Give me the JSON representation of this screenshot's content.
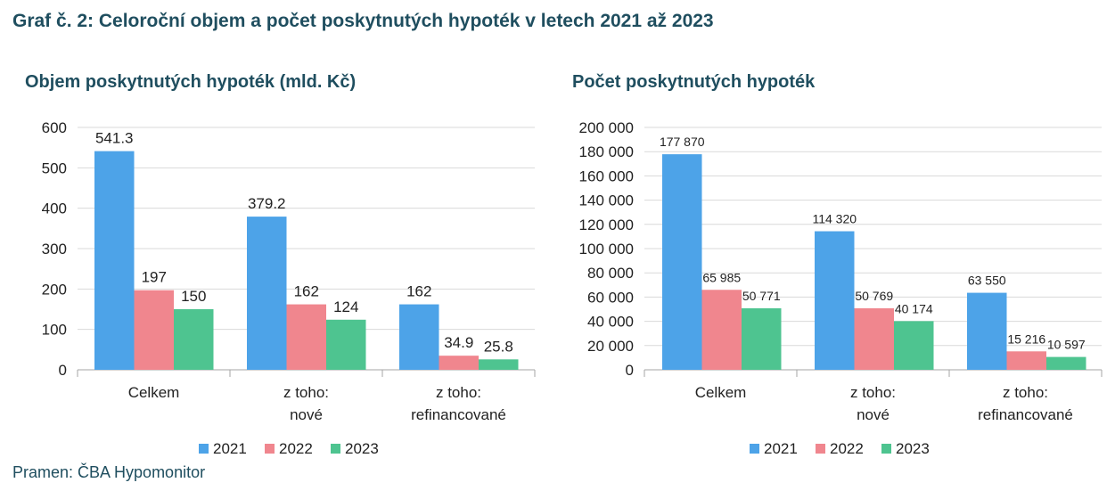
{
  "page": {
    "title": "Graf č. 2: Celoroční objem a počet poskytnutých hypoték v letech 2021 až 2023",
    "source": "Pramen: ČBA Hypomonitor"
  },
  "colors": {
    "2021": "#4da3e8",
    "2022": "#f0868e",
    "2023": "#4ec490"
  },
  "chart_data": [
    {
      "type": "bar",
      "title": "Objem poskytnutých hypoték (mld. Kč)",
      "categories": [
        [
          "Celkem"
        ],
        [
          "z toho:",
          "nové"
        ],
        [
          "z toho:",
          "refinancované"
        ]
      ],
      "series": [
        {
          "name": "2021",
          "values": [
            541.3,
            379.2,
            162
          ],
          "labels": [
            "541.3",
            "379.2",
            "162"
          ]
        },
        {
          "name": "2022",
          "values": [
            197,
            162,
            34.9
          ],
          "labels": [
            "197",
            "162",
            "34.9"
          ]
        },
        {
          "name": "2023",
          "values": [
            150,
            124,
            25.8
          ],
          "labels": [
            "150",
            "124",
            "25.8"
          ]
        }
      ],
      "ylim": [
        0,
        600
      ],
      "yticks": [
        0,
        100,
        200,
        300,
        400,
        500,
        600
      ],
      "ytick_labels": [
        "0",
        "100",
        "200",
        "300",
        "400",
        "500",
        "600"
      ],
      "grid": true,
      "legend": "bottom"
    },
    {
      "type": "bar",
      "title": "Počet poskytnutých hypoték",
      "categories": [
        [
          "Celkem"
        ],
        [
          "z toho:",
          "nové"
        ],
        [
          "z toho:",
          "refinancované"
        ]
      ],
      "series": [
        {
          "name": "2021",
          "values": [
            177870,
            114320,
            63550
          ],
          "labels": [
            "177 870",
            "114 320",
            "63 550"
          ]
        },
        {
          "name": "2022",
          "values": [
            65985,
            50769,
            15216
          ],
          "labels": [
            "65 985",
            "50 769",
            "15 216"
          ]
        },
        {
          "name": "2023",
          "values": [
            50771,
            40174,
            10597
          ],
          "labels": [
            "50 771",
            "40 174",
            "10 597"
          ]
        }
      ],
      "ylim": [
        0,
        200000
      ],
      "yticks": [
        0,
        20000,
        40000,
        60000,
        80000,
        100000,
        120000,
        140000,
        160000,
        180000,
        200000
      ],
      "ytick_labels": [
        "0",
        "20 000",
        "40 000",
        "60 000",
        "80 000",
        "100 000",
        "120 000",
        "140 000",
        "160 000",
        "180 000",
        "200 000"
      ],
      "grid": true,
      "legend": "bottom"
    }
  ]
}
